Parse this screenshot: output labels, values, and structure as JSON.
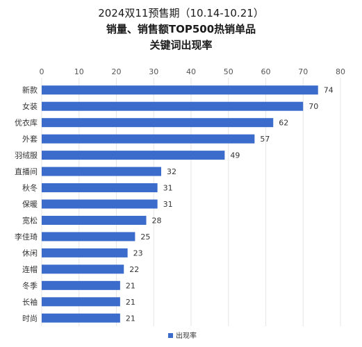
{
  "title_lines": [
    "2024双11预售期（10.14-10.21）",
    "销量、销售额TOP500热销单品",
    "关键词出现率"
  ],
  "colors": {
    "bar": "#3B6CCB",
    "grid": "#e6e6e6",
    "text": "#333333"
  },
  "chart_data": {
    "type": "bar",
    "orientation": "horizontal",
    "categories": [
      "新款",
      "女装",
      "优衣库",
      "外套",
      "羽绒服",
      "直播间",
      "秋冬",
      "保暖",
      "宽松",
      "李佳琦",
      "休闲",
      "连帽",
      "冬季",
      "长袖",
      "时尚"
    ],
    "series": [
      {
        "name": "出现率",
        "values": [
          74,
          70,
          62,
          57,
          49,
          32,
          31,
          31,
          28,
          25,
          23,
          22,
          21,
          21,
          21
        ]
      }
    ],
    "xlim": [
      0,
      80
    ],
    "xticks": [
      0,
      10,
      20,
      30,
      40,
      50,
      60,
      70,
      80
    ],
    "grid": true,
    "legend_position": "bottom-center"
  }
}
